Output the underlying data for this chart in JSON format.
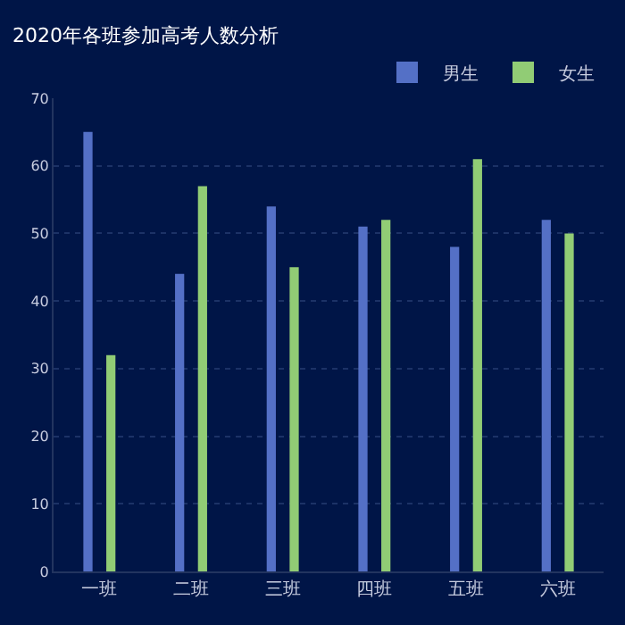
{
  "chart_data": {
    "type": "bar",
    "title": "2020年各班参加高考人数分析",
    "categories": [
      "一班",
      "二班",
      "三班",
      "四班",
      "五班",
      "六班"
    ],
    "series": [
      {
        "name": "男生",
        "color": "#5470c6",
        "values": [
          65,
          44,
          54,
          51,
          48,
          52
        ]
      },
      {
        "name": "女生",
        "color": "#91cc75",
        "values": [
          32,
          57,
          45,
          52,
          61,
          50
        ]
      }
    ],
    "ylim": [
      0,
      70
    ],
    "yticks": [
      0,
      10,
      20,
      30,
      40,
      50,
      60,
      70
    ],
    "grid": "y",
    "legend": "top right"
  }
}
